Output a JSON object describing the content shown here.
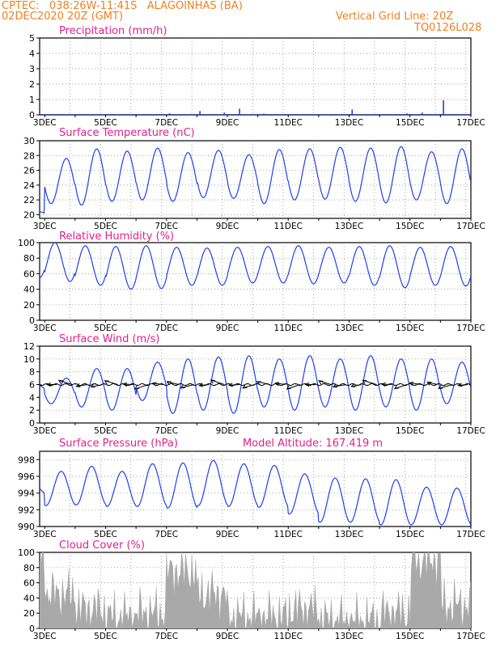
{
  "header": {
    "line1_left": "CPTEC:   038:26W-11:41S   ALAGOINHAS (BA)",
    "line2_left": "02DEC2020 20Z (GMT)",
    "line1_right": "Vertical Grid Line: 20Z",
    "line2_right": "TQ0126L028"
  },
  "colors": {
    "header": "#f08020",
    "title": "#e0208c",
    "series": "#1f3ff0",
    "wind_vector": "#000000",
    "cloud_fill": "#a9a9a9",
    "grid": "#808080"
  },
  "chart_data": [
    {
      "type": "bar",
      "title": "Precipitation (mm/h)",
      "x_tick_labels": [
        "3DEC",
        "5DEC",
        "7DEC",
        "9DEC",
        "11DEC",
        "13DEC",
        "15DEC",
        "17DEC"
      ],
      "ylim": [
        0,
        5
      ],
      "y_ticks": [
        "0",
        "1",
        "2",
        "3",
        "4",
        "5"
      ],
      "grid": true,
      "x_days": [
        5.2,
        7.1,
        8.1,
        8.9,
        9.4,
        10.2,
        11.6,
        13.1,
        14.2,
        14.9,
        15.4,
        16.1
      ],
      "values": [
        0.05,
        0.1,
        0.25,
        0.15,
        0.4,
        0.08,
        0.05,
        0.35,
        0.05,
        0.1,
        0.15,
        0.95
      ]
    },
    {
      "type": "line",
      "title": "Surface Temperature (nC)",
      "x_tick_labels": [
        "3DEC",
        "5DEC",
        "7DEC",
        "9DEC",
        "11DEC",
        "13DEC",
        "15DEC",
        "17DEC"
      ],
      "ylim": [
        19.5,
        30
      ],
      "y_ticks": [
        "20",
        "22",
        "24",
        "26",
        "28",
        "30"
      ],
      "grid": true,
      "daily_max": [
        20.5,
        27.6,
        28.9,
        28.6,
        29.0,
        28.4,
        28.7,
        28.1,
        28.8,
        28.9,
        29.1,
        29.0,
        29.2,
        28.5,
        28.9,
        29.3,
        29.5
      ],
      "daily_min": [
        20.0,
        21.5,
        21.3,
        21.8,
        22.0,
        21.8,
        22.3,
        22.2,
        21.5,
        22.0,
        22.1,
        21.8,
        21.6,
        22.0,
        21.5,
        22.0,
        22.0
      ]
    },
    {
      "type": "line",
      "title": "Relative Humidity (%)",
      "x_tick_labels": [
        "3DEC",
        "5DEC",
        "7DEC",
        "9DEC",
        "11DEC",
        "13DEC",
        "15DEC",
        "17DEC"
      ],
      "ylim": [
        0,
        100
      ],
      "y_ticks": [
        "0",
        "20",
        "40",
        "60",
        "80",
        "100"
      ],
      "grid": true,
      "daily_max": [
        100,
        100,
        96,
        95,
        96,
        94,
        93,
        94,
        95,
        96,
        94,
        95,
        96,
        94,
        95,
        94,
        95
      ],
      "daily_min": [
        55,
        50,
        45,
        40,
        41,
        45,
        45,
        48,
        48,
        47,
        48,
        45,
        42,
        45,
        44,
        44,
        43
      ]
    },
    {
      "type": "line",
      "title": "Surface Wind (m/s)",
      "x_tick_labels": [
        "3DEC",
        "5DEC",
        "7DEC",
        "9DEC",
        "11DEC",
        "13DEC",
        "15DEC",
        "17DEC"
      ],
      "ylim": [
        0,
        12
      ],
      "y_ticks": [
        "0",
        "2",
        "4",
        "6",
        "8",
        "10",
        "12"
      ],
      "grid": true,
      "daily_max": [
        6.0,
        7.0,
        8.5,
        8.5,
        9.5,
        10.0,
        10.3,
        10.5,
        10.0,
        10.5,
        10.0,
        10.5,
        10.0,
        10.0,
        9.5,
        10.5,
        10.0
      ],
      "daily_min": [
        5.0,
        3.0,
        2.5,
        2.0,
        3.5,
        1.5,
        2.0,
        1.5,
        2.5,
        2.0,
        2.5,
        2.0,
        2.5,
        2.0,
        3.0,
        2.5,
        3.0
      ],
      "vector_level": 6
    },
    {
      "type": "line",
      "title": "Surface Pressure (hPa)",
      "annotation": "Model Altitude: 167.419 m",
      "x_tick_labels": [
        "3DEC",
        "5DEC",
        "7DEC",
        "9DEC",
        "11DEC",
        "13DEC",
        "15DEC",
        "17DEC"
      ],
      "ylim": [
        990,
        999
      ],
      "y_ticks": [
        "990",
        "992",
        "994",
        "996",
        "998"
      ],
      "grid": true,
      "daily_max": [
        995.5,
        996.6,
        997.2,
        996.6,
        997.5,
        997.6,
        997.9,
        997.5,
        997.3,
        996.3,
        995.8,
        995.7,
        995.6,
        994.7,
        994.6,
        994.5,
        994.0
      ],
      "daily_min": [
        994.0,
        992.5,
        992.6,
        992.4,
        992.4,
        992.2,
        992.5,
        992.4,
        992.3,
        991.5,
        990.5,
        990.5,
        990.2,
        990.2,
        990.2,
        990.0,
        990.0
      ]
    },
    {
      "type": "area",
      "title": "Cloud Cover (%)",
      "x_tick_labels": [
        "3DEC",
        "5DEC",
        "7DEC",
        "9DEC",
        "11DEC",
        "13DEC",
        "15DEC",
        "17DEC"
      ],
      "ylim": [
        0,
        100
      ],
      "y_ticks": [
        "0",
        "20",
        "40",
        "60",
        "80",
        "100"
      ],
      "grid": true,
      "daily_mean": [
        85,
        45,
        25,
        15,
        20,
        75,
        45,
        15,
        15,
        25,
        10,
        10,
        20,
        90,
        30,
        85,
        75
      ]
    }
  ]
}
